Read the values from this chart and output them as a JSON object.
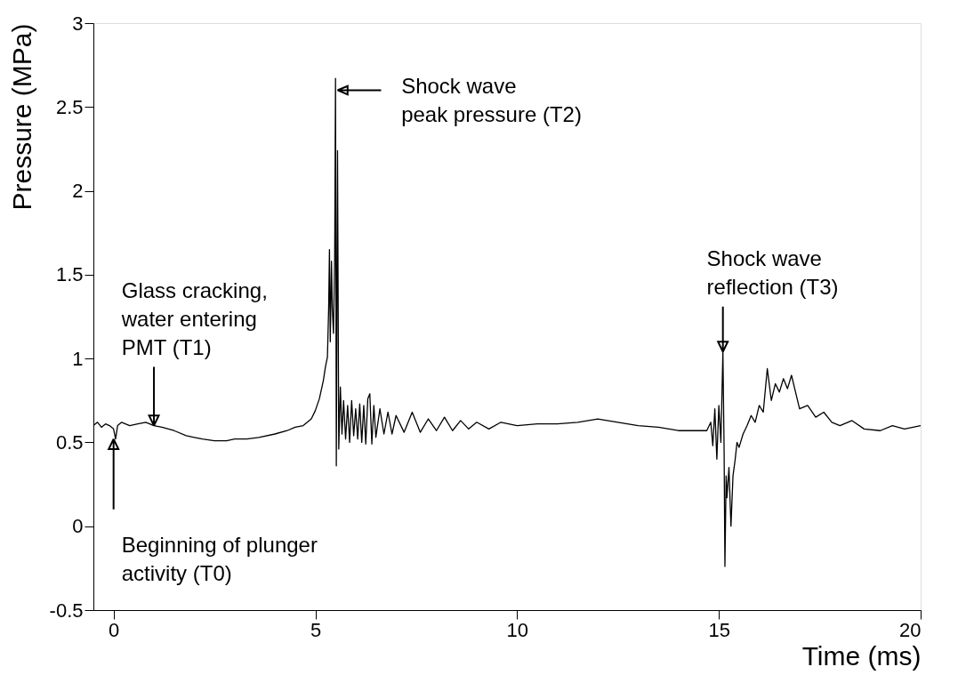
{
  "chart_data": {
    "type": "line",
    "xlabel": "Time (ms)",
    "ylabel": "Pressure (MPa)",
    "xlim": [
      -0.5,
      20
    ],
    "ylim": [
      -0.5,
      3
    ],
    "xticks": [
      0,
      5,
      10,
      15,
      20
    ],
    "yticks": [
      -0.5,
      0,
      0.5,
      1,
      1.5,
      2,
      2.5,
      3
    ],
    "grid": false,
    "marker": "none",
    "line_style": "solid",
    "series": [
      {
        "color": "#000000",
        "x": [
          -0.5,
          -0.4,
          -0.3,
          -0.2,
          -0.1,
          0,
          0.05,
          0.1,
          0.2,
          0.4,
          0.6,
          0.8,
          1,
          1.2,
          1.5,
          1.8,
          2,
          2.2,
          2.5,
          2.8,
          3,
          3.3,
          3.6,
          4,
          4.3,
          4.5,
          4.7,
          4.9,
          5,
          5.1,
          5.2,
          5.25,
          5.3,
          5.33,
          5.35,
          5.37,
          5.4,
          5.42,
          5.45,
          5.48,
          5.5,
          5.52,
          5.55,
          5.58,
          5.62,
          5.66,
          5.7,
          5.75,
          5.8,
          5.85,
          5.9,
          5.95,
          6,
          6.05,
          6.1,
          6.15,
          6.2,
          6.25,
          6.3,
          6.35,
          6.4,
          6.45,
          6.5,
          6.6,
          6.7,
          6.8,
          6.9,
          7,
          7.2,
          7.4,
          7.6,
          7.8,
          8,
          8.2,
          8.4,
          8.6,
          8.8,
          9,
          9.3,
          9.6,
          10,
          10.5,
          11,
          11.5,
          12,
          12.5,
          13,
          13.5,
          14,
          14.4,
          14.7,
          14.8,
          14.85,
          14.9,
          14.95,
          15,
          15.05,
          15.1,
          15.13,
          15.15,
          15.18,
          15.2,
          15.25,
          15.3,
          15.35,
          15.4,
          15.45,
          15.5,
          15.6,
          15.7,
          15.8,
          15.9,
          16,
          16.1,
          16.2,
          16.3,
          16.4,
          16.5,
          16.6,
          16.7,
          16.8,
          16.9,
          17,
          17.2,
          17.4,
          17.6,
          17.8,
          18,
          18.3,
          18.6,
          19,
          19.3,
          19.6,
          20
        ],
        "values": [
          0.6,
          0.62,
          0.59,
          0.61,
          0.6,
          0.58,
          0.52,
          0.6,
          0.62,
          0.6,
          0.61,
          0.62,
          0.6,
          0.59,
          0.57,
          0.54,
          0.53,
          0.52,
          0.51,
          0.51,
          0.52,
          0.52,
          0.53,
          0.55,
          0.57,
          0.59,
          0.6,
          0.64,
          0.69,
          0.76,
          0.87,
          0.95,
          1.01,
          1.3,
          1.65,
          1.1,
          1.58,
          1.3,
          1.15,
          1.6,
          2.67,
          0.36,
          2.24,
          0.46,
          0.83,
          0.55,
          0.75,
          0.52,
          0.72,
          0.5,
          0.75,
          0.54,
          0.7,
          0.52,
          0.73,
          0.5,
          0.72,
          0.49,
          0.76,
          0.79,
          0.49,
          0.72,
          0.53,
          0.7,
          0.55,
          0.68,
          0.55,
          0.66,
          0.56,
          0.68,
          0.56,
          0.64,
          0.57,
          0.65,
          0.57,
          0.63,
          0.58,
          0.62,
          0.58,
          0.62,
          0.6,
          0.61,
          0.61,
          0.62,
          0.64,
          0.62,
          0.6,
          0.59,
          0.57,
          0.57,
          0.57,
          0.62,
          0.48,
          0.7,
          0.4,
          0.72,
          0.5,
          1.04,
          0.45,
          -0.24,
          0.3,
          0.17,
          0.35,
          0.0,
          0.3,
          0.39,
          0.5,
          0.47,
          0.55,
          0.6,
          0.66,
          0.62,
          0.72,
          0.68,
          0.94,
          0.75,
          0.85,
          0.8,
          0.88,
          0.82,
          0.9,
          0.8,
          0.7,
          0.72,
          0.65,
          0.68,
          0.62,
          0.6,
          0.63,
          0.58,
          0.57,
          0.6,
          0.58,
          0.6
        ]
      }
    ],
    "annotations": [
      {
        "text": "Beginning of plunger\nactivity (T0)",
        "x": 0,
        "y": 0.52
      },
      {
        "text": "Glass cracking,\nwater entering\nPMT (T1)",
        "x": 1,
        "y": 0.6
      },
      {
        "text": "Shock wave\npeak pressure (T2)",
        "x": 5.55,
        "y": 2.6
      },
      {
        "text": "Shock wave\nreflection (T3)",
        "x": 15.1,
        "y": 1.04
      }
    ]
  }
}
